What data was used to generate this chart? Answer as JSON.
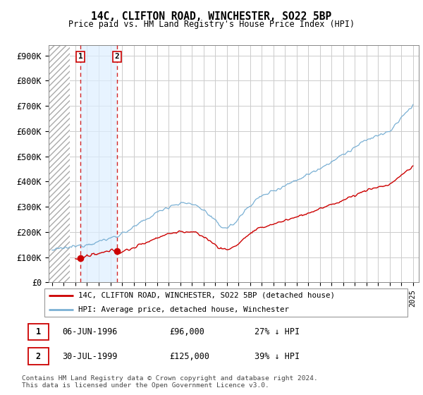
{
  "title": "14C, CLIFTON ROAD, WINCHESTER, SO22 5BP",
  "subtitle": "Price paid vs. HM Land Registry's House Price Index (HPI)",
  "ylabel_ticks": [
    "£0",
    "£100K",
    "£200K",
    "£300K",
    "£400K",
    "£500K",
    "£600K",
    "£700K",
    "£800K",
    "£900K"
  ],
  "ytick_values": [
    0,
    100000,
    200000,
    300000,
    400000,
    500000,
    600000,
    700000,
    800000,
    900000
  ],
  "ylim": [
    0,
    940000
  ],
  "xlim_start": 1993.7,
  "xlim_end": 2025.5,
  "transactions": [
    {
      "date": 1996.43,
      "price": 96000,
      "label": "1"
    },
    {
      "date": 1999.58,
      "price": 125000,
      "label": "2"
    }
  ],
  "legend_red": "14C, CLIFTON ROAD, WINCHESTER, SO22 5BP (detached house)",
  "legend_blue": "HPI: Average price, detached house, Winchester",
  "table_rows": [
    {
      "num": "1",
      "date": "06-JUN-1996",
      "price": "£96,000",
      "pct": "27% ↓ HPI"
    },
    {
      "num": "2",
      "date": "30-JUL-1999",
      "price": "£125,000",
      "pct": "39% ↓ HPI"
    }
  ],
  "footnote": "Contains HM Land Registry data © Crown copyright and database right 2024.\nThis data is licensed under the Open Government Licence v3.0.",
  "hatch_end_year": 1995.5,
  "blue_shade_start": 1996.43,
  "blue_shade_end": 1999.58,
  "red_line_color": "#cc0000",
  "blue_line_color": "#7ab0d4",
  "blue_shade_color": "#ddeeff",
  "hatch_color": "#cccccc",
  "grid_color": "#cccccc",
  "bg_color": "#ffffff"
}
